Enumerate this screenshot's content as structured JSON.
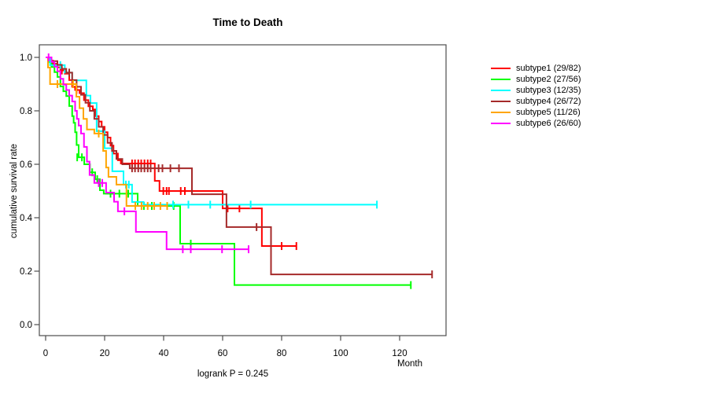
{
  "chart_data": {
    "type": "line",
    "variant": "kaplan-meier-step",
    "title": "Time to Death",
    "xlabel": "Month",
    "ylabel": "cumulative survival rate",
    "annotation": "logrank P = 0.245",
    "xlim": [
      0,
      135
    ],
    "ylim": [
      0.0,
      1.0
    ],
    "x_ticks": [
      0,
      20,
      40,
      60,
      80,
      100,
      120
    ],
    "y_ticks": [
      0.0,
      0.2,
      0.4,
      0.6,
      0.8,
      1.0
    ],
    "grid": false,
    "legend_position": "right-outside",
    "series": [
      {
        "name": "subtype1",
        "label": "subtype1 (29/82)",
        "color": "#FF0000",
        "steps": [
          [
            0,
            1.0
          ],
          [
            1,
            0.988
          ],
          [
            2.5,
            0.976
          ],
          [
            4,
            0.963
          ],
          [
            5,
            0.951
          ],
          [
            6.5,
            0.939
          ],
          [
            8,
            0.915
          ],
          [
            9,
            0.89
          ],
          [
            10,
            0.878
          ],
          [
            11.5,
            0.866
          ],
          [
            13,
            0.84
          ],
          [
            14.5,
            0.817
          ],
          [
            16,
            0.805
          ],
          [
            17,
            0.78
          ],
          [
            18,
            0.76
          ],
          [
            19,
            0.74
          ],
          [
            20,
            0.72
          ],
          [
            21,
            0.7
          ],
          [
            22,
            0.67
          ],
          [
            23,
            0.64
          ],
          [
            24.5,
            0.615
          ],
          [
            25.5,
            0.603
          ],
          [
            37,
            0.538
          ],
          [
            38.6,
            0.5
          ],
          [
            60,
            0.435
          ],
          [
            73.3,
            0.294
          ]
        ],
        "end": 85,
        "censors": [
          [
            5.5,
            0.951
          ],
          [
            10.5,
            0.878
          ],
          [
            29.3,
            0.603
          ],
          [
            30.3,
            0.603
          ],
          [
            31.4,
            0.603
          ],
          [
            32.4,
            0.603
          ],
          [
            33.5,
            0.603
          ],
          [
            34.6,
            0.603
          ],
          [
            35.6,
            0.603
          ],
          [
            39.9,
            0.5
          ],
          [
            41,
            0.5
          ],
          [
            41.8,
            0.5
          ],
          [
            45.8,
            0.5
          ],
          [
            47.2,
            0.5
          ],
          [
            61.7,
            0.435
          ],
          [
            65.7,
            0.435
          ],
          [
            80,
            0.294
          ],
          [
            85,
            0.294
          ]
        ]
      },
      {
        "name": "subtype2",
        "label": "subtype2 (27/56)",
        "color": "#00FF00",
        "steps": [
          [
            0,
            1.0
          ],
          [
            1,
            0.982
          ],
          [
            2,
            0.964
          ],
          [
            3,
            0.945
          ],
          [
            4,
            0.927
          ],
          [
            5,
            0.891
          ],
          [
            6,
            0.873
          ],
          [
            7,
            0.855
          ],
          [
            8,
            0.818
          ],
          [
            9,
            0.78
          ],
          [
            9.5,
            0.755
          ],
          [
            10,
            0.72
          ],
          [
            10.5,
            0.672
          ],
          [
            11.2,
            0.626
          ],
          [
            13.1,
            0.6
          ],
          [
            15,
            0.57
          ],
          [
            16.8,
            0.544
          ],
          [
            18.4,
            0.503
          ],
          [
            19.7,
            0.49
          ],
          [
            31.2,
            0.444
          ],
          [
            45.6,
            0.303
          ],
          [
            64,
            0.148
          ]
        ],
        "end": 123.8,
        "censors": [
          [
            10.7,
            0.626
          ],
          [
            12.3,
            0.626
          ],
          [
            15.8,
            0.57
          ],
          [
            17.5,
            0.544
          ],
          [
            22,
            0.49
          ],
          [
            25,
            0.49
          ],
          [
            28,
            0.49
          ],
          [
            33.3,
            0.444
          ],
          [
            36,
            0.444
          ],
          [
            43.4,
            0.444
          ],
          [
            49.2,
            0.303
          ],
          [
            123.8,
            0.148
          ]
        ]
      },
      {
        "name": "subtype3",
        "label": "subtype3 (12/35)",
        "color": "#00FFFF",
        "steps": [
          [
            0,
            1.0
          ],
          [
            1.5,
            0.971
          ],
          [
            6.5,
            0.943
          ],
          [
            9,
            0.914
          ],
          [
            13.8,
            0.857
          ],
          [
            15.2,
            0.829
          ],
          [
            17.3,
            0.724
          ],
          [
            20,
            0.66
          ],
          [
            22.6,
            0.574
          ],
          [
            26.4,
            0.524
          ],
          [
            29.3,
            0.459
          ],
          [
            33.2,
            0.449
          ]
        ],
        "end": 112.3,
        "censors": [
          [
            5,
            0.971
          ],
          [
            27.2,
            0.524
          ],
          [
            28.2,
            0.524
          ],
          [
            43.2,
            0.449
          ],
          [
            48.4,
            0.449
          ],
          [
            55.8,
            0.449
          ],
          [
            69.5,
            0.449
          ],
          [
            112.3,
            0.449
          ]
        ]
      },
      {
        "name": "subtype4",
        "label": "subtype4 (26/72)",
        "color": "#A52A2A",
        "steps": [
          [
            0,
            1.0
          ],
          [
            2,
            0.986
          ],
          [
            4,
            0.972
          ],
          [
            5.5,
            0.957
          ],
          [
            7,
            0.943
          ],
          [
            9,
            0.915
          ],
          [
            10.5,
            0.89
          ],
          [
            12,
            0.86
          ],
          [
            13.5,
            0.83
          ],
          [
            15,
            0.8
          ],
          [
            16.5,
            0.77
          ],
          [
            18,
            0.74
          ],
          [
            19.5,
            0.71
          ],
          [
            21,
            0.68
          ],
          [
            22.5,
            0.65
          ],
          [
            24,
            0.62
          ],
          [
            26,
            0.6
          ],
          [
            28.5,
            0.585
          ],
          [
            49.6,
            0.488
          ],
          [
            61.3,
            0.365
          ],
          [
            76.4,
            0.188
          ]
        ],
        "end": 131,
        "censors": [
          [
            8,
            0.943
          ],
          [
            29.3,
            0.585
          ],
          [
            30.3,
            0.585
          ],
          [
            31.4,
            0.585
          ],
          [
            32.4,
            0.585
          ],
          [
            33.5,
            0.585
          ],
          [
            34.6,
            0.585
          ],
          [
            35.6,
            0.585
          ],
          [
            38.3,
            0.585
          ],
          [
            39.6,
            0.585
          ],
          [
            42.3,
            0.585
          ],
          [
            45.2,
            0.585
          ],
          [
            71.5,
            0.365
          ],
          [
            131,
            0.188
          ]
        ]
      },
      {
        "name": "subtype5",
        "label": "subtype5 (11/26)",
        "color": "#FFA500",
        "steps": [
          [
            0,
            1.0
          ],
          [
            0.8,
            0.962
          ],
          [
            1.5,
            0.9
          ],
          [
            10.4,
            0.853
          ],
          [
            11.5,
            0.81
          ],
          [
            12.8,
            0.77
          ],
          [
            14,
            0.73
          ],
          [
            16.5,
            0.715
          ],
          [
            19.5,
            0.65
          ],
          [
            20.5,
            0.588
          ],
          [
            21.3,
            0.553
          ],
          [
            24,
            0.524
          ],
          [
            27.4,
            0.444
          ]
        ],
        "end": 41.2,
        "censors": [
          [
            4,
            0.9
          ],
          [
            9.3,
            0.9
          ],
          [
            18,
            0.715
          ],
          [
            30.4,
            0.444
          ],
          [
            32.5,
            0.444
          ],
          [
            34.6,
            0.444
          ],
          [
            36.8,
            0.444
          ],
          [
            38.9,
            0.444
          ],
          [
            41.2,
            0.444
          ]
        ]
      },
      {
        "name": "subtype6",
        "label": "subtype6 (26/60)",
        "color": "#FF00FF",
        "steps": [
          [
            0,
            1.0
          ],
          [
            2,
            0.983
          ],
          [
            3,
            0.965
          ],
          [
            4,
            0.948
          ],
          [
            5,
            0.92
          ],
          [
            6,
            0.898
          ],
          [
            7,
            0.878
          ],
          [
            8,
            0.857
          ],
          [
            9,
            0.835
          ],
          [
            10,
            0.8
          ],
          [
            10.6,
            0.77
          ],
          [
            11.2,
            0.745
          ],
          [
            12,
            0.715
          ],
          [
            13,
            0.665
          ],
          [
            14,
            0.61
          ],
          [
            14.9,
            0.56
          ],
          [
            16.5,
            0.53
          ],
          [
            20.5,
            0.494
          ],
          [
            23.2,
            0.46
          ],
          [
            24.5,
            0.424
          ],
          [
            30.6,
            0.347
          ],
          [
            41,
            0.282
          ]
        ],
        "end": 68.8,
        "censors": [
          [
            1,
            1.0
          ],
          [
            18,
            0.53
          ],
          [
            19.2,
            0.53
          ],
          [
            26.7,
            0.424
          ],
          [
            46.5,
            0.282
          ],
          [
            49.2,
            0.282
          ],
          [
            59.8,
            0.282
          ],
          [
            68.8,
            0.282
          ]
        ]
      }
    ]
  }
}
